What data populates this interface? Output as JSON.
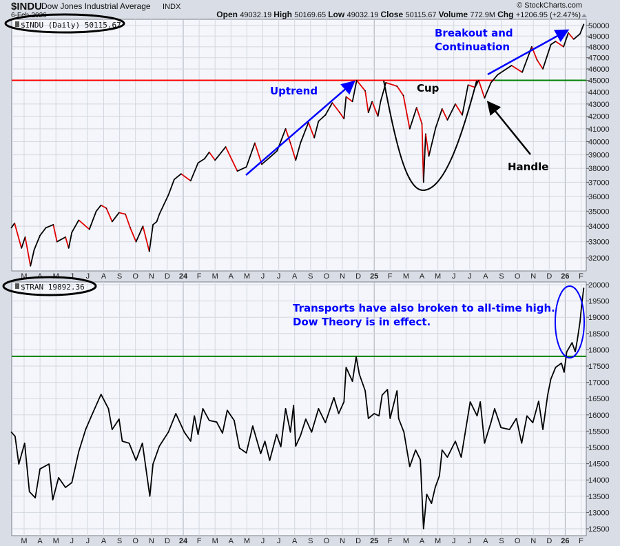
{
  "header": {
    "symbol": "$INDU",
    "name": "Dow Jones Industrial Average",
    "exchange": "INDX",
    "date": "6-Feb-2026",
    "watermark": "© StockCharts.com",
    "stats": [
      {
        "label": "Open",
        "value": "49032.19"
      },
      {
        "label": "High",
        "value": "50169.65"
      },
      {
        "label": "Low",
        "value": "49032.19"
      },
      {
        "label": "Close",
        "value": "50115.67"
      },
      {
        "label": "Volume",
        "value": "772.9M"
      },
      {
        "label": "Chg",
        "value": "+1206.95 (+2.47%)"
      }
    ]
  },
  "colors": {
    "up": "#000000",
    "down": "#e00000",
    "resistance": "#ff0000",
    "support": "#008000",
    "annotation": "#0000ff",
    "plot_bg": "#f4f6fb",
    "grid": "#d3d7df"
  },
  "x_axis_labels": [
    "M",
    "A",
    "M",
    "J",
    "J",
    "A",
    "S",
    "O",
    "N",
    "D",
    "24",
    "F",
    "M",
    "A",
    "M",
    "J",
    "J",
    "A",
    "S",
    "O",
    "N",
    "D",
    "25",
    "F",
    "M",
    "A",
    "M",
    "J",
    "J",
    "A",
    "S",
    "O",
    "N",
    "D",
    "26",
    "F"
  ],
  "annotations": {
    "uptrend": "Uptrend",
    "cup": "Cup",
    "breakout_line1": "Breakout and",
    "breakout_line2": "Continuation",
    "handle": "Handle",
    "transports_line1": "Transports have also broken to all-time high.",
    "transports_line2": "Dow Theory is in effect."
  },
  "chart_data": [
    {
      "type": "line",
      "panel": "top",
      "legend": "$INDU (Daily) 50115.67",
      "y_scale": "log",
      "ylim": [
        31500,
        50500
      ],
      "yticks": [
        32000,
        33000,
        34000,
        35000,
        36000,
        37000,
        38000,
        39000,
        40000,
        41000,
        42000,
        43000,
        44000,
        45000,
        46000,
        47000,
        48000,
        49000,
        50000
      ],
      "grid": true,
      "horizontal_lines": [
        {
          "value": 45000,
          "color": "#ff0000",
          "to": "2025-08-18"
        },
        {
          "value": 45000,
          "color": "#008000",
          "from": "2025-08-18"
        }
      ],
      "series": [
        {
          "points": [
            [
              "2023-02-07",
              33900
            ],
            [
              "2023-02-13",
              34200
            ],
            [
              "2023-02-26",
              32600
            ],
            [
              "2023-03-03",
              33300
            ],
            [
              "2023-03-13",
              31500
            ],
            [
              "2023-03-20",
              32500
            ],
            [
              "2023-04-01",
              33400
            ],
            [
              "2023-04-12",
              33900
            ],
            [
              "2023-04-26",
              34100
            ],
            [
              "2023-05-03",
              33000
            ],
            [
              "2023-05-19",
              33300
            ],
            [
              "2023-05-25",
              32600
            ],
            [
              "2023-06-01",
              33600
            ],
            [
              "2023-06-14",
              34400
            ],
            [
              "2023-07-04",
              33800
            ],
            [
              "2023-07-17",
              35000
            ],
            [
              "2023-07-26",
              35400
            ],
            [
              "2023-08-06",
              35200
            ],
            [
              "2023-08-17",
              34300
            ],
            [
              "2023-08-30",
              34900
            ],
            [
              "2023-09-12",
              34800
            ],
            [
              "2023-09-21",
              33900
            ],
            [
              "2023-10-02",
              33000
            ],
            [
              "2023-10-15",
              34000
            ],
            [
              "2023-10-27",
              32400
            ],
            [
              "2023-11-04",
              34100
            ],
            [
              "2023-11-11",
              34300
            ],
            [
              "2023-11-16",
              34800
            ],
            [
              "2023-12-03",
              36100
            ],
            [
              "2023-12-14",
              37200
            ],
            [
              "2023-12-27",
              37600
            ],
            [
              "2024-01-15",
              37100
            ],
            [
              "2024-01-29",
              38400
            ],
            [
              "2024-02-11",
              38700
            ],
            [
              "2024-02-20",
              39200
            ],
            [
              "2024-03-01",
              38600
            ],
            [
              "2024-03-21",
              39600
            ],
            [
              "2024-04-13",
              37800
            ],
            [
              "2024-04-30",
              38100
            ],
            [
              "2024-05-16",
              39900
            ],
            [
              "2024-05-29",
              38300
            ],
            [
              "2024-06-11",
              38700
            ],
            [
              "2024-06-28",
              39300
            ],
            [
              "2024-07-14",
              41000
            ],
            [
              "2024-07-23",
              39900
            ],
            [
              "2024-08-03",
              38600
            ],
            [
              "2024-08-12",
              39900
            ],
            [
              "2024-08-27",
              41500
            ],
            [
              "2024-09-08",
              40300
            ],
            [
              "2024-09-16",
              41600
            ],
            [
              "2024-09-29",
              42100
            ],
            [
              "2024-10-12",
              43100
            ],
            [
              "2024-10-26",
              42300
            ],
            [
              "2024-11-04",
              41800
            ],
            [
              "2024-11-08",
              43600
            ],
            [
              "2024-11-20",
              43200
            ],
            [
              "2024-11-28",
              45000
            ],
            [
              "2024-12-14",
              44100
            ],
            [
              "2024-12-20",
              42300
            ],
            [
              "2024-12-27",
              43200
            ],
            [
              "2025-01-08",
              42000
            ],
            [
              "2025-01-13",
              43200
            ],
            [
              "2025-01-23",
              44800
            ],
            [
              "2025-02-14",
              44500
            ],
            [
              "2025-02-26",
              43700
            ],
            [
              "2025-03-08",
              41000
            ],
            [
              "2025-03-21",
              42700
            ],
            [
              "2025-03-31",
              41400
            ],
            [
              "2025-04-04",
              37000
            ],
            [
              "2025-04-08",
              40600
            ],
            [
              "2025-04-14",
              38900
            ],
            [
              "2025-04-27",
              41100
            ],
            [
              "2025-05-09",
              42600
            ],
            [
              "2025-05-19",
              41700
            ],
            [
              "2025-06-04",
              43000
            ],
            [
              "2025-06-17",
              42100
            ],
            [
              "2025-06-28",
              44600
            ],
            [
              "2025-07-11",
              44400
            ],
            [
              "2025-07-18",
              45000
            ],
            [
              "2025-07-29",
              43500
            ],
            [
              "2025-08-11",
              44800
            ],
            [
              "2025-08-24",
              45500
            ],
            [
              "2025-09-20",
              46300
            ],
            [
              "2025-10-10",
              45700
            ],
            [
              "2025-10-28",
              48000
            ],
            [
              "2025-11-08",
              46800
            ],
            [
              "2025-11-19",
              46000
            ],
            [
              "2025-12-04",
              48200
            ],
            [
              "2025-12-13",
              48500
            ],
            [
              "2025-12-28",
              48000
            ],
            [
              "2026-01-07",
              49300
            ],
            [
              "2026-01-17",
              48700
            ],
            [
              "2026-01-29",
              49200
            ],
            [
              "2026-02-06",
              50115.67
            ]
          ]
        }
      ]
    },
    {
      "type": "line",
      "panel": "bottom",
      "legend": "$TRAN 19892.36",
      "y_scale": "linear",
      "ylim": [
        12300,
        20300
      ],
      "yticks": [
        12500,
        13000,
        13500,
        14000,
        14500,
        15000,
        15500,
        16000,
        16500,
        17000,
        17500,
        18000,
        18500,
        19000,
        19500,
        20000
      ],
      "grid": true,
      "horizontal_lines": [
        {
          "value": 17800,
          "color": "#008000"
        }
      ],
      "series": [
        {
          "points": [
            [
              "2023-02-07",
              15470
            ],
            [
              "2023-02-14",
              15340
            ],
            [
              "2023-02-21",
              14490
            ],
            [
              "2023-03-02",
              15130
            ],
            [
              "2023-03-11",
              13640
            ],
            [
              "2023-03-22",
              13450
            ],
            [
              "2023-04-01",
              14340
            ],
            [
              "2023-04-18",
              14490
            ],
            [
              "2023-04-25",
              13390
            ],
            [
              "2023-05-06",
              14070
            ],
            [
              "2023-05-19",
              13770
            ],
            [
              "2023-06-01",
              13920
            ],
            [
              "2023-06-14",
              14870
            ],
            [
              "2023-06-27",
              15550
            ],
            [
              "2023-07-08",
              15970
            ],
            [
              "2023-07-26",
              16630
            ],
            [
              "2023-08-10",
              16190
            ],
            [
              "2023-08-17",
              15550
            ],
            [
              "2023-08-30",
              15870
            ],
            [
              "2023-09-06",
              15190
            ],
            [
              "2023-09-19",
              15130
            ],
            [
              "2023-10-02",
              14600
            ],
            [
              "2023-10-14",
              15130
            ],
            [
              "2023-10-28",
              13500
            ],
            [
              "2023-11-04",
              14490
            ],
            [
              "2023-11-16",
              15040
            ],
            [
              "2023-12-03",
              15470
            ],
            [
              "2023-12-17",
              16040
            ],
            [
              "2024-01-03",
              15470
            ],
            [
              "2024-01-15",
              15190
            ],
            [
              "2024-01-22",
              15970
            ],
            [
              "2024-01-29",
              15400
            ],
            [
              "2024-02-08",
              16190
            ],
            [
              "2024-02-20",
              15830
            ],
            [
              "2024-03-04",
              15780
            ],
            [
              "2024-03-15",
              15440
            ],
            [
              "2024-03-24",
              16140
            ],
            [
              "2024-04-07",
              15830
            ],
            [
              "2024-04-17",
              14980
            ],
            [
              "2024-04-30",
              14830
            ],
            [
              "2024-05-12",
              15660
            ],
            [
              "2024-05-27",
              14810
            ],
            [
              "2024-06-05",
              15190
            ],
            [
              "2024-06-14",
              14600
            ],
            [
              "2024-06-27",
              15400
            ],
            [
              "2024-07-05",
              15020
            ],
            [
              "2024-07-14",
              16190
            ],
            [
              "2024-07-23",
              15470
            ],
            [
              "2024-07-29",
              16290
            ],
            [
              "2024-08-03",
              15040
            ],
            [
              "2024-08-12",
              15360
            ],
            [
              "2024-08-22",
              15870
            ],
            [
              "2024-09-03",
              15470
            ],
            [
              "2024-09-16",
              16190
            ],
            [
              "2024-09-29",
              15760
            ],
            [
              "2024-10-15",
              16530
            ],
            [
              "2024-10-24",
              16040
            ],
            [
              "2024-11-04",
              16400
            ],
            [
              "2024-11-08",
              17460
            ],
            [
              "2024-11-20",
              17030
            ],
            [
              "2024-11-27",
              17780
            ],
            [
              "2024-12-03",
              17250
            ],
            [
              "2024-12-14",
              16740
            ],
            [
              "2024-12-20",
              15890
            ],
            [
              "2024-12-31",
              16040
            ],
            [
              "2025-01-10",
              15970
            ],
            [
              "2025-01-16",
              16610
            ],
            [
              "2025-01-26",
              16780
            ],
            [
              "2025-02-01",
              15890
            ],
            [
              "2025-02-14",
              16740
            ],
            [
              "2025-02-17",
              15890
            ],
            [
              "2025-02-27",
              15470
            ],
            [
              "2025-03-08",
              14410
            ],
            [
              "2025-03-19",
              14920
            ],
            [
              "2025-03-28",
              14620
            ],
            [
              "2025-04-04",
              12500
            ],
            [
              "2025-04-10",
              13560
            ],
            [
              "2025-04-19",
              13280
            ],
            [
              "2025-04-26",
              13770
            ],
            [
              "2025-05-04",
              14130
            ],
            [
              "2025-05-09",
              14920
            ],
            [
              "2025-05-19",
              14700
            ],
            [
              "2025-06-04",
              15190
            ],
            [
              "2025-06-15",
              14700
            ],
            [
              "2025-06-22",
              15400
            ],
            [
              "2025-07-02",
              16400
            ],
            [
              "2025-07-15",
              15970
            ],
            [
              "2025-07-21",
              16400
            ],
            [
              "2025-07-29",
              15130
            ],
            [
              "2025-08-11",
              15760
            ],
            [
              "2025-08-18",
              16190
            ],
            [
              "2025-08-30",
              15610
            ],
            [
              "2025-09-16",
              15550
            ],
            [
              "2025-09-29",
              15890
            ],
            [
              "2025-10-09",
              15130
            ],
            [
              "2025-10-19",
              15970
            ],
            [
              "2025-10-30",
              15760
            ],
            [
              "2025-11-11",
              16420
            ],
            [
              "2025-11-19",
              15550
            ],
            [
              "2025-11-28",
              16610
            ],
            [
              "2025-12-04",
              17100
            ],
            [
              "2025-12-13",
              17460
            ],
            [
              "2025-12-24",
              17590
            ],
            [
              "2025-12-29",
              17310
            ],
            [
              "2026-01-04",
              17940
            ],
            [
              "2026-01-14",
              18220
            ],
            [
              "2026-01-20",
              17940
            ],
            [
              "2026-01-24",
              18310
            ],
            [
              "2026-01-29",
              18860
            ],
            [
              "2026-02-02",
              19360
            ],
            [
              "2026-02-06",
              19892.36
            ]
          ]
        }
      ]
    }
  ]
}
